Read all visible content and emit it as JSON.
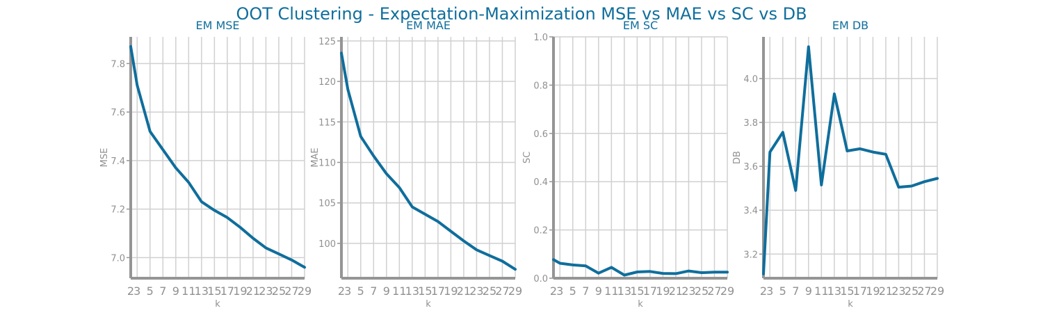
{
  "title": "OOT Clustering - Expectation-Maximization MSE vs MAE vs SC vs DB",
  "colors": {
    "line": "#0f6e9c",
    "title": "#0f6e9c",
    "grid": "#d0d0d0",
    "axis": "#959595",
    "text": "#909090"
  },
  "chart_data": [
    {
      "type": "line",
      "title": "EM MSE",
      "xlabel": "k",
      "ylabel": "MSE",
      "x": [
        2,
        3,
        5,
        7,
        9,
        11,
        13,
        15,
        17,
        19,
        21,
        23,
        25,
        27,
        29
      ],
      "xticks": [
        "2",
        "3",
        "5",
        "7",
        "9",
        "11",
        "13",
        "15",
        "17",
        "19",
        "21",
        "23",
        "25",
        "27",
        "29"
      ],
      "yticks": [
        "7.0",
        "7.2",
        "7.4",
        "7.6",
        "7.8"
      ],
      "ytick_values": [
        7.0,
        7.2,
        7.4,
        7.6,
        7.8
      ],
      "xlim": [
        2,
        29
      ],
      "ylim": [
        6.915,
        7.91
      ],
      "grid": true,
      "series": [
        {
          "values": [
            7.87,
            7.71,
            7.52,
            7.445,
            7.37,
            7.31,
            7.23,
            7.195,
            7.165,
            7.125,
            7.08,
            7.04,
            7.015,
            6.99,
            6.96
          ]
        }
      ]
    },
    {
      "type": "line",
      "title": "EM MAE",
      "xlabel": "k",
      "ylabel": "MAE",
      "x": [
        2,
        3,
        5,
        7,
        9,
        11,
        13,
        15,
        17,
        19,
        21,
        23,
        25,
        27,
        29
      ],
      "xticks": [
        "2",
        "3",
        "5",
        "7",
        "9",
        "11",
        "13",
        "15",
        "17",
        "19",
        "21",
        "23",
        "25",
        "27",
        "29"
      ],
      "yticks": [
        "100",
        "105",
        "110",
        "115",
        "120",
        "125"
      ],
      "ytick_values": [
        100,
        105,
        110,
        115,
        120,
        125
      ],
      "xlim": [
        2,
        29
      ],
      "ylim": [
        95.7,
        125.5
      ],
      "grid": true,
      "series": [
        {
          "values": [
            123.5,
            119,
            113.2,
            110.8,
            108.6,
            106.9,
            104.5,
            103.6,
            102.7,
            101.5,
            100.3,
            99.2,
            98.5,
            97.8,
            96.8
          ]
        }
      ]
    },
    {
      "type": "line",
      "title": "EM SC",
      "xlabel": "k",
      "ylabel": "SC",
      "x": [
        2,
        3,
        5,
        7,
        9,
        11,
        13,
        15,
        17,
        19,
        21,
        23,
        25,
        27,
        29
      ],
      "xticks": [
        "2",
        "3",
        "5",
        "7",
        "9",
        "11",
        "13",
        "15",
        "17",
        "19",
        "21",
        "23",
        "25",
        "27",
        "29"
      ],
      "yticks": [
        "0.0",
        "0.2",
        "0.4",
        "0.6",
        "0.8",
        "1.0"
      ],
      "ytick_values": [
        0.0,
        0.2,
        0.4,
        0.6,
        0.8,
        1.0
      ],
      "xlim": [
        2,
        29
      ],
      "ylim": [
        0,
        1
      ],
      "grid": true,
      "series": [
        {
          "values": [
            0.077,
            0.062,
            0.055,
            0.051,
            0.021,
            0.045,
            0.013,
            0.026,
            0.028,
            0.02,
            0.019,
            0.03,
            0.023,
            0.025,
            0.025
          ]
        }
      ]
    },
    {
      "type": "line",
      "title": "EM DB",
      "xlabel": "k",
      "ylabel": "DB",
      "x": [
        2,
        3,
        5,
        7,
        9,
        11,
        13,
        15,
        17,
        19,
        21,
        23,
        25,
        27,
        29
      ],
      "xticks": [
        "2",
        "3",
        "5",
        "7",
        "9",
        "11",
        "13",
        "15",
        "17",
        "19",
        "21",
        "23",
        "25",
        "27",
        "29"
      ],
      "yticks": [
        "3.2",
        "3.4",
        "3.6",
        "3.8",
        "4.0"
      ],
      "ytick_values": [
        3.2,
        3.4,
        3.6,
        3.8,
        4.0
      ],
      "xlim": [
        2,
        29
      ],
      "ylim": [
        3.09,
        4.19
      ],
      "grid": true,
      "series": [
        {
          "values": [
            3.11,
            3.665,
            3.755,
            3.49,
            4.145,
            3.515,
            3.93,
            3.67,
            3.68,
            3.665,
            3.655,
            3.505,
            3.51,
            3.53,
            3.545
          ]
        }
      ]
    }
  ]
}
